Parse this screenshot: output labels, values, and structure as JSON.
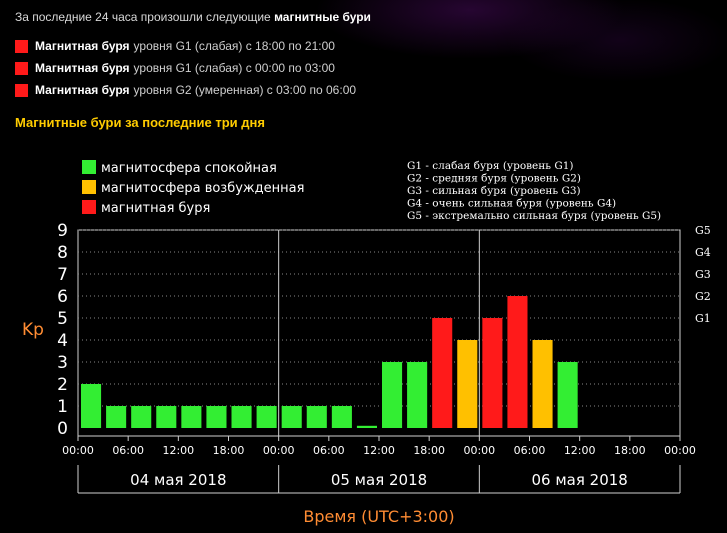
{
  "intro": {
    "prefix": "За последние 24 часа произошли следующие ",
    "bold": "магнитные бури"
  },
  "storms": [
    {
      "bold": "Магнитная буря",
      "text": "уровня G1 (слабая) с 18:00 по 21:00",
      "color": "#ff1a1a"
    },
    {
      "bold": "Магнитная буря",
      "text": "уровня G1 (слабая) с 00:00 по 03:00",
      "color": "#ff1a1a"
    },
    {
      "bold": "Магнитная буря",
      "text": "уровня G2 (умеренная) с 03:00 по 06:00",
      "color": "#ff1a1a"
    }
  ],
  "section_title": "Магнитные бури за последние три дня",
  "legend": [
    {
      "label": "магнитосфера спокойная",
      "color": "#33ee33"
    },
    {
      "label": "магнитосфера возбужденная",
      "color": "#ffc000"
    },
    {
      "label": "магнитная буря",
      "color": "#ff1a1a"
    }
  ],
  "g_legend": [
    "G1 - слабая буря (уровень G1)",
    "G2 - средняя буря (уровень G2)",
    "G3 - сильная буря (уровень G3)",
    "G4 - очень сильная буря (уровень G4)",
    "G5 - экстремально сильная буря (уровень G5)"
  ],
  "chart_data": {
    "type": "bar",
    "title": "Магнитные бури за последние три дня",
    "ylabel": "Kp",
    "xlabel": "Время (UTC+3:00)",
    "ylim": [
      0,
      9
    ],
    "yticks": [
      "0",
      "1",
      "2",
      "3",
      "4",
      "5",
      "6",
      "7",
      "8",
      "9"
    ],
    "right_ticks": [
      {
        "value": 5,
        "label": "G1"
      },
      {
        "value": 6,
        "label": "G2"
      },
      {
        "value": 7,
        "label": "G3"
      },
      {
        "value": 8,
        "label": "G4"
      },
      {
        "value": 9,
        "label": "G5"
      }
    ],
    "xticks": [
      "00:00",
      "06:00",
      "12:00",
      "18:00",
      "00:00",
      "06:00",
      "12:00",
      "18:00",
      "00:00",
      "06:00",
      "12:00",
      "18:00",
      "00:00"
    ],
    "days": [
      "04 мая 2018",
      "05 мая 2018",
      "06 мая 2018"
    ],
    "interval_hours": 3,
    "values": [
      2,
      1,
      1,
      1,
      1,
      1,
      1,
      1,
      1,
      1,
      1,
      0.1,
      3,
      3,
      5,
      4,
      5,
      6,
      4,
      3
    ],
    "levels": [
      "quiet",
      "quiet",
      "quiet",
      "quiet",
      "quiet",
      "quiet",
      "quiet",
      "quiet",
      "quiet",
      "quiet",
      "quiet",
      "quiet",
      "quiet",
      "quiet",
      "storm",
      "active",
      "storm",
      "storm",
      "active",
      "quiet"
    ],
    "level_colors": {
      "quiet": "#33ee33",
      "active": "#ffc000",
      "storm": "#ff1a1a"
    },
    "grid": true
  }
}
